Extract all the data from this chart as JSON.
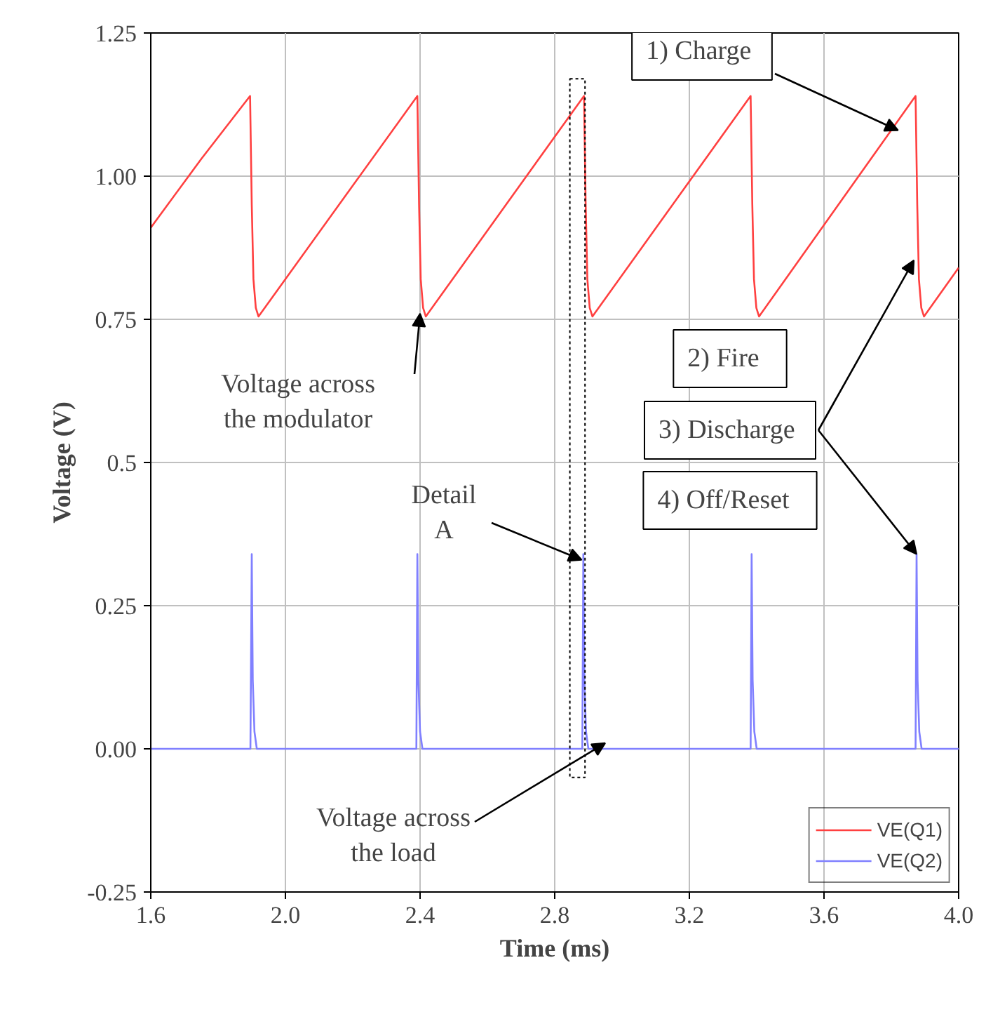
{
  "chart_data": {
    "type": "line",
    "xlabel": "Time (ms)",
    "ylabel": "Voltage (V)",
    "xlim": [
      1.6,
      4.0
    ],
    "ylim": [
      -0.25,
      1.25
    ],
    "xticks": [
      {
        "value": 1.6,
        "label": "1.6"
      },
      {
        "value": 2.0,
        "label": "2.0"
      },
      {
        "value": 2.4,
        "label": "2.4"
      },
      {
        "value": 2.8,
        "label": "2.8"
      },
      {
        "value": 3.2,
        "label": "3.2"
      },
      {
        "value": 3.6,
        "label": "3.6"
      },
      {
        "value": 4.0,
        "label": "4.0"
      }
    ],
    "yticks": [
      {
        "value": -0.25,
        "label": "-0.25"
      },
      {
        "value": 0,
        "label": "0.00"
      },
      0.25,
      {
        "value": 0.5,
        "label": "0.5"
      },
      0.75,
      {
        "value": 1.0,
        "label": "1.00"
      },
      1.25
    ],
    "grid": true,
    "legend": "bottom right",
    "series": [
      {
        "name": "VE(Q1)",
        "color": "#ff4040",
        "x": [
          1.6,
          1.75,
          1.895,
          1.9,
          1.905,
          1.912,
          1.92,
          2.392,
          2.397,
          2.402,
          2.409,
          2.417,
          2.887,
          2.892,
          2.897,
          2.904,
          2.912,
          3.382,
          3.387,
          3.392,
          3.399,
          3.407,
          3.872,
          3.877,
          3.882,
          3.889,
          3.897,
          4.0
        ],
        "values": [
          0.91,
          1.03,
          1.14,
          0.95,
          0.82,
          0.77,
          0.755,
          1.14,
          0.95,
          0.82,
          0.77,
          0.755,
          1.14,
          0.95,
          0.82,
          0.77,
          0.755,
          1.14,
          0.95,
          0.82,
          0.77,
          0.755,
          1.14,
          0.95,
          0.82,
          0.77,
          0.755,
          0.84
        ]
      },
      {
        "name": "VE(Q2)",
        "color": "#8080ff",
        "x": [
          1.6,
          1.75,
          1.896,
          1.9,
          1.903,
          1.908,
          1.915,
          2.389,
          2.392,
          2.395,
          2.4,
          2.407,
          2.882,
          2.885,
          2.888,
          2.893,
          2.9,
          3.382,
          3.385,
          3.388,
          3.393,
          3.4,
          3.872,
          3.875,
          3.878,
          3.883,
          3.89,
          4.0
        ],
        "values": [
          0,
          0,
          0,
          0.34,
          0.12,
          0.03,
          0,
          0,
          0.34,
          0.12,
          0.03,
          0,
          0,
          0.34,
          0.12,
          0.03,
          0,
          0,
          0.34,
          0.12,
          0.03,
          0,
          0,
          0.34,
          0.12,
          0.03,
          0,
          0
        ]
      }
    ],
    "annotations": [
      {
        "text": "1)  Charge",
        "x": 3.82,
        "y": 1.08
      },
      {
        "text": "Voltage across\nthe modulator",
        "x": 2.4,
        "y": 0.76
      },
      {
        "text": "Detail\nA",
        "x": 2.88,
        "y": 0.33
      },
      {
        "text": "Voltage across\nthe load",
        "x": 2.95,
        "y": 0.01
      },
      "2)   Fire",
      {
        "text": "3)  Discharge",
        "x": 3.867,
        "y": 0.853
      },
      "4)   Off/Reset"
    ]
  }
}
